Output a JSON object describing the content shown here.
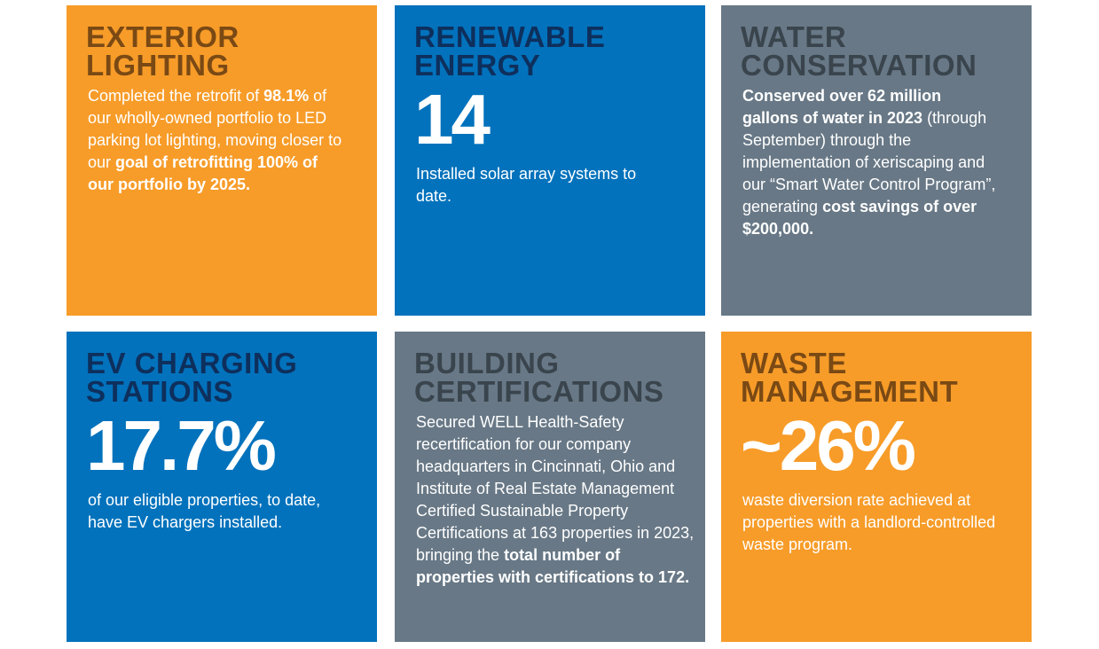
{
  "tiles": [
    {
      "title": [
        "EXTERIOR",
        "LIGHTING"
      ],
      "color": "#f79c29",
      "title_color": "#7a4914",
      "body": [
        {
          "text": "Completed the retrofit of "
        },
        {
          "text": "98.1%",
          "bold": true
        },
        {
          "text": " of our wholly-owned portfolio to LED parking lot lighting, moving closer to our "
        },
        {
          "text": "goal of retrofitting 100% of our portfolio by 2025.",
          "bold": true
        }
      ]
    },
    {
      "title": [
        "RENEWABLE",
        "ENERGY"
      ],
      "color": "#0272bc",
      "title_color": "#0e2f5c",
      "stat": "14",
      "body": [
        {
          "text": "Installed solar array systems to date."
        }
      ]
    },
    {
      "title": [
        "WATER",
        "CONSERVATION"
      ],
      "color": "#687886",
      "title_color": "#39444d",
      "body": [
        {
          "text": "Conserved over 62 million gallons of water in 2023",
          "bold": true
        },
        {
          "text": " (through September) through the implementation of xeriscaping and our “Smart Water Control Program”, generating "
        },
        {
          "text": "cost savings of over $200,000.",
          "bold": true
        }
      ]
    },
    {
      "title": [
        "EV CHARGING",
        "STATIONS"
      ],
      "color": "#0272bc",
      "title_color": "#0e2f5c",
      "stat": "17.7%",
      "body": [
        {
          "text": "of our eligible properties, to date, have EV chargers installed."
        }
      ]
    },
    {
      "title": [
        "BUILDING",
        "CERTIFICATIONS"
      ],
      "color": "#687886",
      "title_color": "#39444d",
      "body": [
        {
          "text": "Secured WELL Health-Safety recertification for our company headquarters in Cincinnati, Ohio and Institute of Real Estate Management Certified Sustainable Property Certifications at 163 properties in 2023, bringing the "
        },
        {
          "text": "total number of properties with certifications to 172.",
          "bold": true
        }
      ]
    },
    {
      "title": [
        "WASTE",
        "MANAGEMENT"
      ],
      "color": "#f79c29",
      "title_color": "#7a4914",
      "stat": "~26%",
      "body": [
        {
          "text": "waste diversion rate achieved at properties with a landlord-controlled waste program."
        }
      ]
    }
  ]
}
